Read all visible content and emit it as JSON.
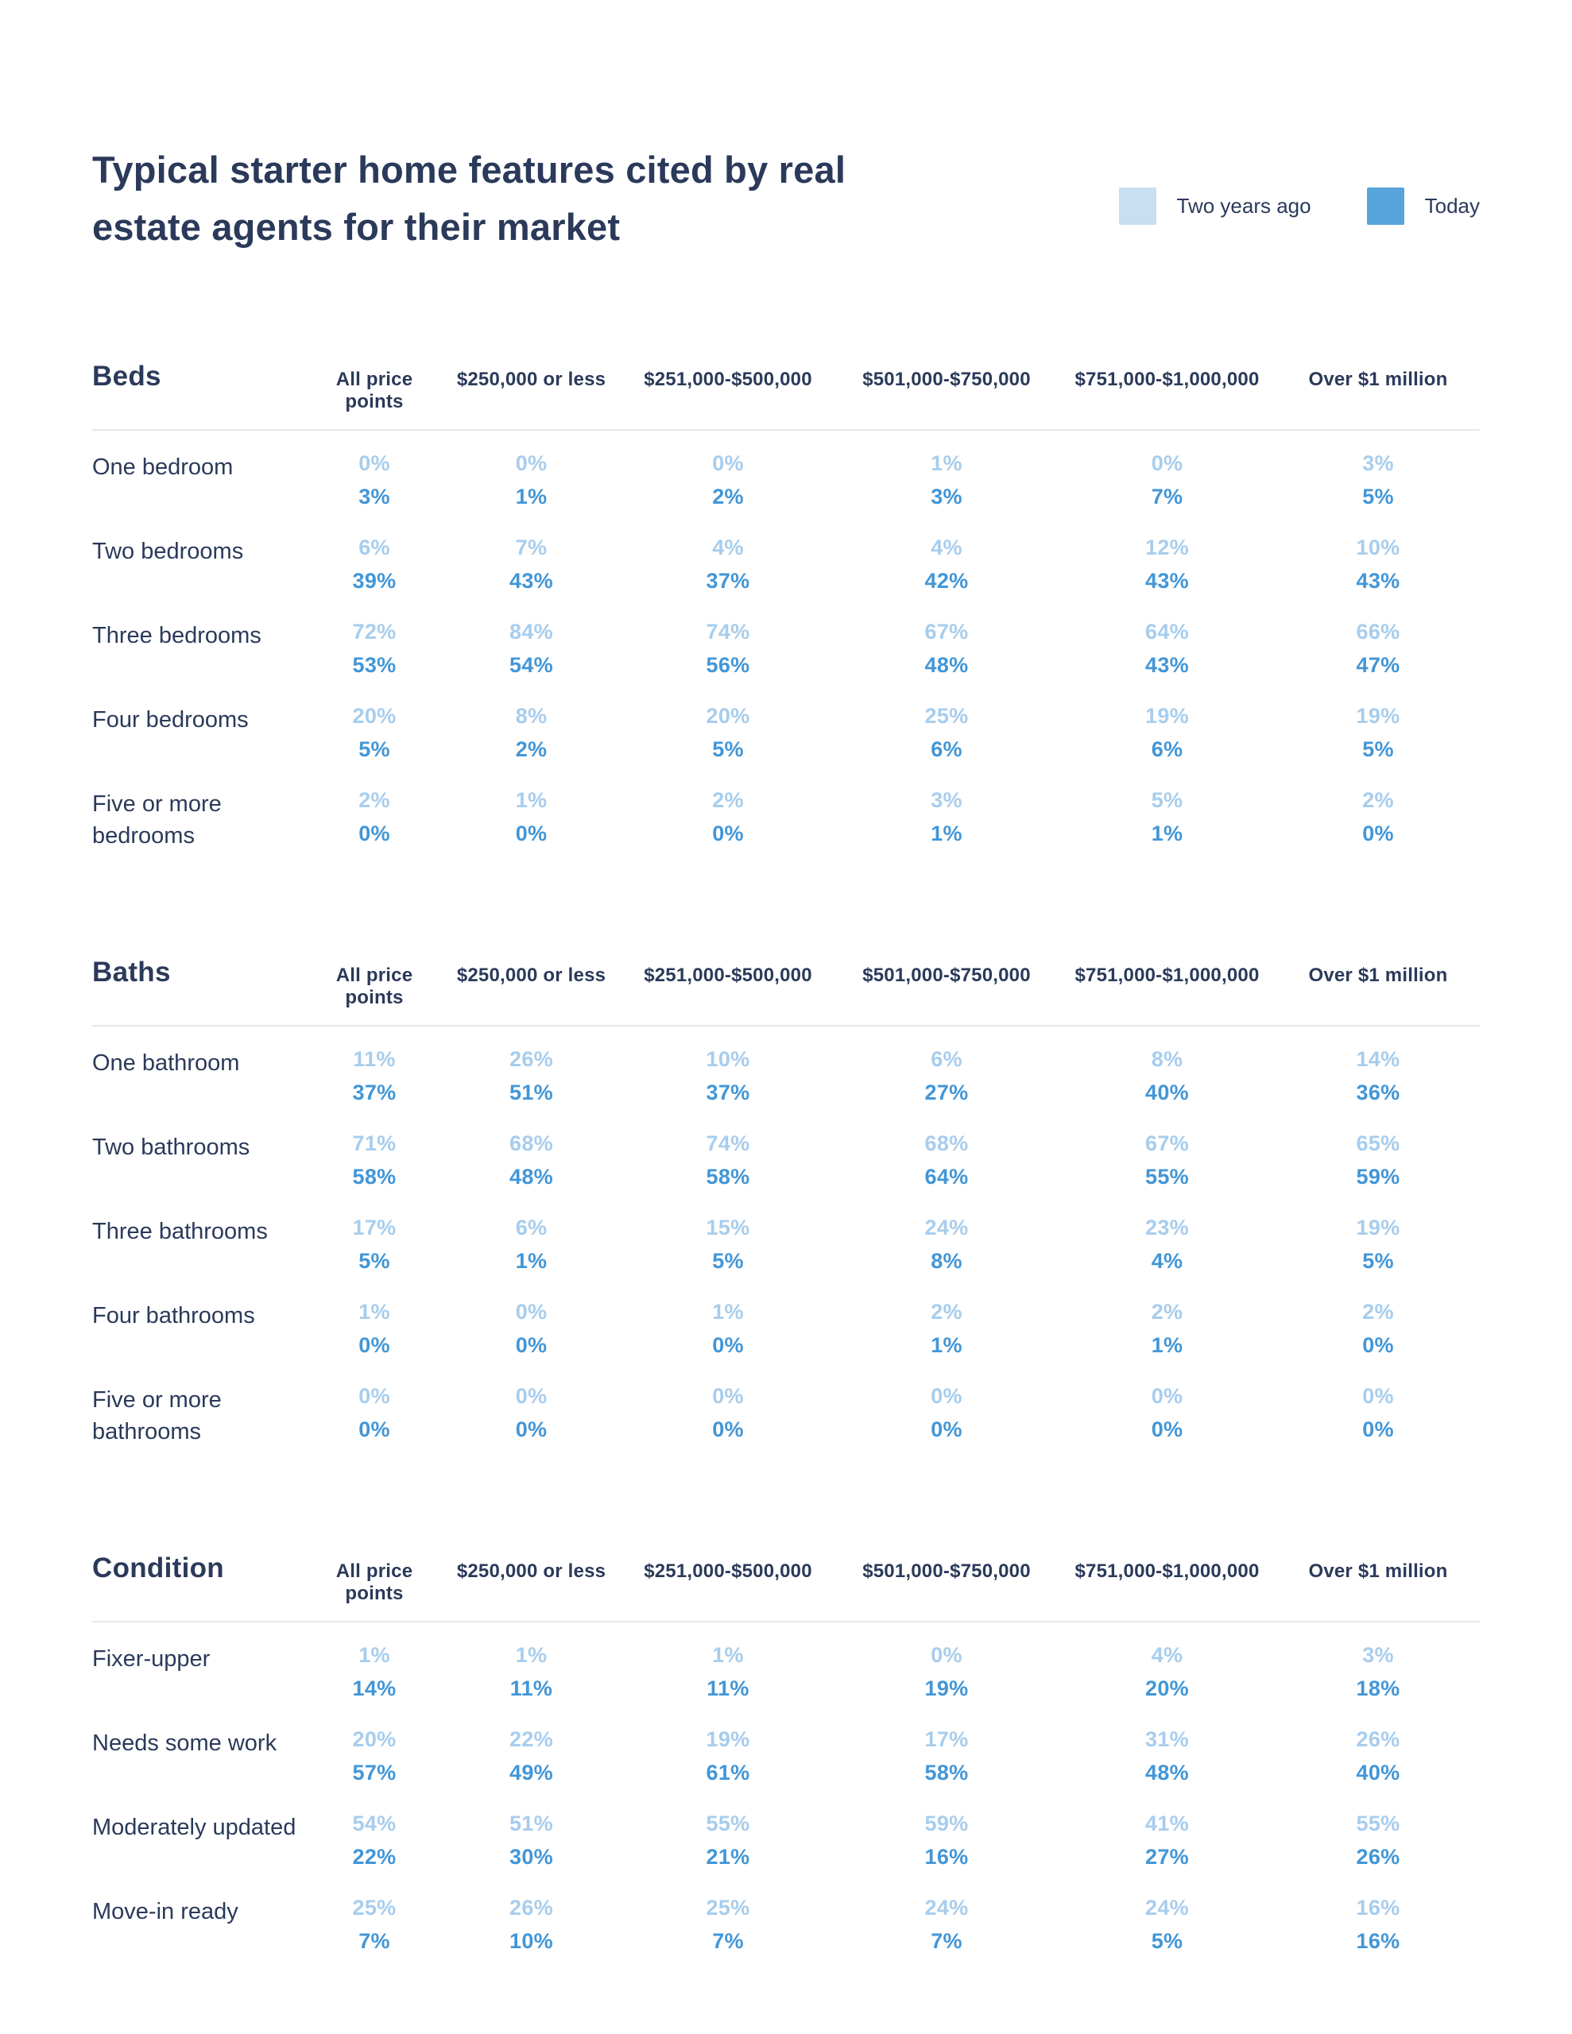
{
  "title": "Typical starter home features cited by real estate agents for their market",
  "legend": {
    "two_years_ago": {
      "label": "Two years ago",
      "color": "#c8dff2"
    },
    "today": {
      "label": "Today",
      "color": "#57a5dc"
    }
  },
  "colors": {
    "navy_text": "#2b3a5a",
    "value_two_years_ago": "#a7cded",
    "value_today": "#4296d7",
    "divider": "#e5e7ea"
  },
  "chart_data": {
    "type": "table",
    "title": "Typical starter home features cited by real estate agents for their market",
    "legend_entries": [
      "Two years ago",
      "Today"
    ],
    "unit": "%",
    "columns": [
      "All price points",
      "$250,000 or less",
      "$251,000-$500,000",
      "$501,000-$750,000",
      "$751,000-$1,000,000",
      "Over $1 million"
    ],
    "sections": [
      {
        "name": "Beds",
        "rows": [
          {
            "label": "One bedroom",
            "two_years_ago": [
              0,
              0,
              0,
              1,
              0,
              3
            ],
            "today": [
              3,
              1,
              2,
              3,
              7,
              5
            ]
          },
          {
            "label": "Two bedrooms",
            "two_years_ago": [
              6,
              7,
              4,
              4,
              12,
              10
            ],
            "today": [
              39,
              43,
              37,
              42,
              43,
              43
            ]
          },
          {
            "label": "Three bedrooms",
            "two_years_ago": [
              72,
              84,
              74,
              67,
              64,
              66
            ],
            "today": [
              53,
              54,
              56,
              48,
              43,
              47
            ]
          },
          {
            "label": "Four bedrooms",
            "two_years_ago": [
              20,
              8,
              20,
              25,
              19,
              19
            ],
            "today": [
              5,
              2,
              5,
              6,
              6,
              5
            ]
          },
          {
            "label": "Five or more bedrooms",
            "two_years_ago": [
              2,
              1,
              2,
              3,
              5,
              2
            ],
            "today": [
              0,
              0,
              0,
              1,
              1,
              0
            ]
          }
        ]
      },
      {
        "name": "Baths",
        "rows": [
          {
            "label": "One bathroom",
            "two_years_ago": [
              11,
              26,
              10,
              6,
              8,
              14
            ],
            "today": [
              37,
              51,
              37,
              27,
              40,
              36
            ]
          },
          {
            "label": "Two bathrooms",
            "two_years_ago": [
              71,
              68,
              74,
              68,
              67,
              65
            ],
            "today": [
              58,
              48,
              58,
              64,
              55,
              59
            ]
          },
          {
            "label": "Three bathrooms",
            "two_years_ago": [
              17,
              6,
              15,
              24,
              23,
              19
            ],
            "today": [
              5,
              1,
              5,
              8,
              4,
              5
            ]
          },
          {
            "label": "Four bathrooms",
            "two_years_ago": [
              1,
              0,
              1,
              2,
              2,
              2
            ],
            "today": [
              0,
              0,
              0,
              1,
              1,
              0
            ]
          },
          {
            "label": "Five or more bathrooms",
            "two_years_ago": [
              0,
              0,
              0,
              0,
              0,
              0
            ],
            "today": [
              0,
              0,
              0,
              0,
              0,
              0
            ]
          }
        ]
      },
      {
        "name": "Condition",
        "rows": [
          {
            "label": "Fixer-upper",
            "two_years_ago": [
              1,
              1,
              1,
              0,
              4,
              3
            ],
            "today": [
              14,
              11,
              11,
              19,
              20,
              18
            ]
          },
          {
            "label": "Needs some work",
            "two_years_ago": [
              20,
              22,
              19,
              17,
              31,
              26
            ],
            "today": [
              57,
              49,
              61,
              58,
              48,
              40
            ]
          },
          {
            "label": "Moderately updated",
            "two_years_ago": [
              54,
              51,
              55,
              59,
              41,
              55
            ],
            "today": [
              22,
              30,
              21,
              16,
              27,
              26
            ]
          },
          {
            "label": "Move-in ready",
            "two_years_ago": [
              25,
              26,
              25,
              24,
              24,
              16
            ],
            "today": [
              7,
              10,
              7,
              7,
              5,
              16
            ]
          }
        ]
      }
    ]
  }
}
